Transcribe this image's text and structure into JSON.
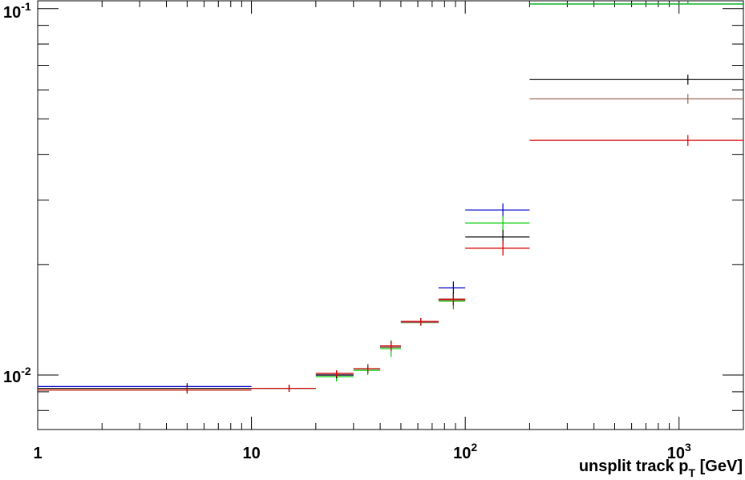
{
  "chart_data": {
    "type": "scatter",
    "title": "",
    "xlabel": "unsplit track p_T [GeV]",
    "xlabel_parts": {
      "pre": "unsplit track p",
      "sub": "T",
      "post": " [GeV]"
    },
    "ylabel": "",
    "xscale": "log",
    "yscale": "log",
    "xlim": [
      1,
      2000
    ],
    "ylim": [
      0.0071,
      0.105
    ],
    "grid": false,
    "x_tick_labels": [
      {
        "x": 1,
        "text": "1"
      },
      {
        "x": 10,
        "text": "10"
      },
      {
        "x": 100,
        "base": "10",
        "exp": "2"
      },
      {
        "x": 1000,
        "base": "10",
        "exp": "3"
      }
    ],
    "y_tick_labels": [
      {
        "y": 0.01,
        "base": "10",
        "exp": "-2"
      },
      {
        "y": 0.1,
        "base": "10",
        "exp": "-1"
      }
    ],
    "bins": [
      [
        1,
        10
      ],
      [
        10,
        20
      ],
      [
        20,
        30
      ],
      [
        30,
        40
      ],
      [
        40,
        50
      ],
      [
        50,
        75
      ],
      [
        75,
        100
      ],
      [
        100,
        200
      ],
      [
        200,
        2000
      ]
    ],
    "bin_centers": [
      5.0,
      15.0,
      25.0,
      35.0,
      45.0,
      62.0,
      88.0,
      150.0,
      1100.0
    ],
    "series": [
      {
        "color": "#0000cc",
        "values": [
          0.0093,
          0.0092,
          0.01,
          0.0104,
          0.0119,
          0.014,
          0.0173,
          0.0282,
          0.107
        ],
        "errors": [
          0.0002,
          0.0002,
          0.0002,
          0.0003,
          0.0003,
          0.0003,
          0.0007,
          0.0012,
          0.0035
        ]
      },
      {
        "color": "#00cc00",
        "values": [
          0.0091,
          0.0092,
          0.0099,
          0.0103,
          0.0118,
          0.0139,
          0.0159,
          0.026,
          0.107
        ],
        "errors": [
          0.0002,
          0.0002,
          0.0003,
          0.0003,
          0.0006,
          0.0003,
          0.0008,
          0.0012,
          0.0035
        ]
      },
      {
        "color": "#000000",
        "values": [
          0.0092,
          0.0092,
          0.01,
          0.0104,
          0.012,
          0.014,
          0.0161,
          0.0238,
          0.064
        ],
        "errors": [
          0.0002,
          0.0002,
          0.0002,
          0.0003,
          0.0004,
          0.0003,
          0.0007,
          0.0011,
          0.002
        ]
      },
      {
        "color": "#996655",
        "values": [
          0.0091,
          0.0092,
          0.0101,
          0.0104,
          0.0119,
          0.0139,
          0.016,
          0.0222,
          0.0567
        ],
        "errors": [
          0.0002,
          0.0002,
          0.0002,
          0.0003,
          0.0003,
          0.0003,
          0.0006,
          0.001,
          0.0018
        ]
      },
      {
        "color": "#dd0000",
        "values": [
          0.0091,
          0.0092,
          0.0101,
          0.0104,
          0.012,
          0.014,
          0.0161,
          0.0222,
          0.0437
        ],
        "errors": [
          0.0002,
          0.0002,
          0.0002,
          0.0003,
          0.0003,
          0.0003,
          0.0006,
          0.001,
          0.0015
        ]
      }
    ]
  }
}
